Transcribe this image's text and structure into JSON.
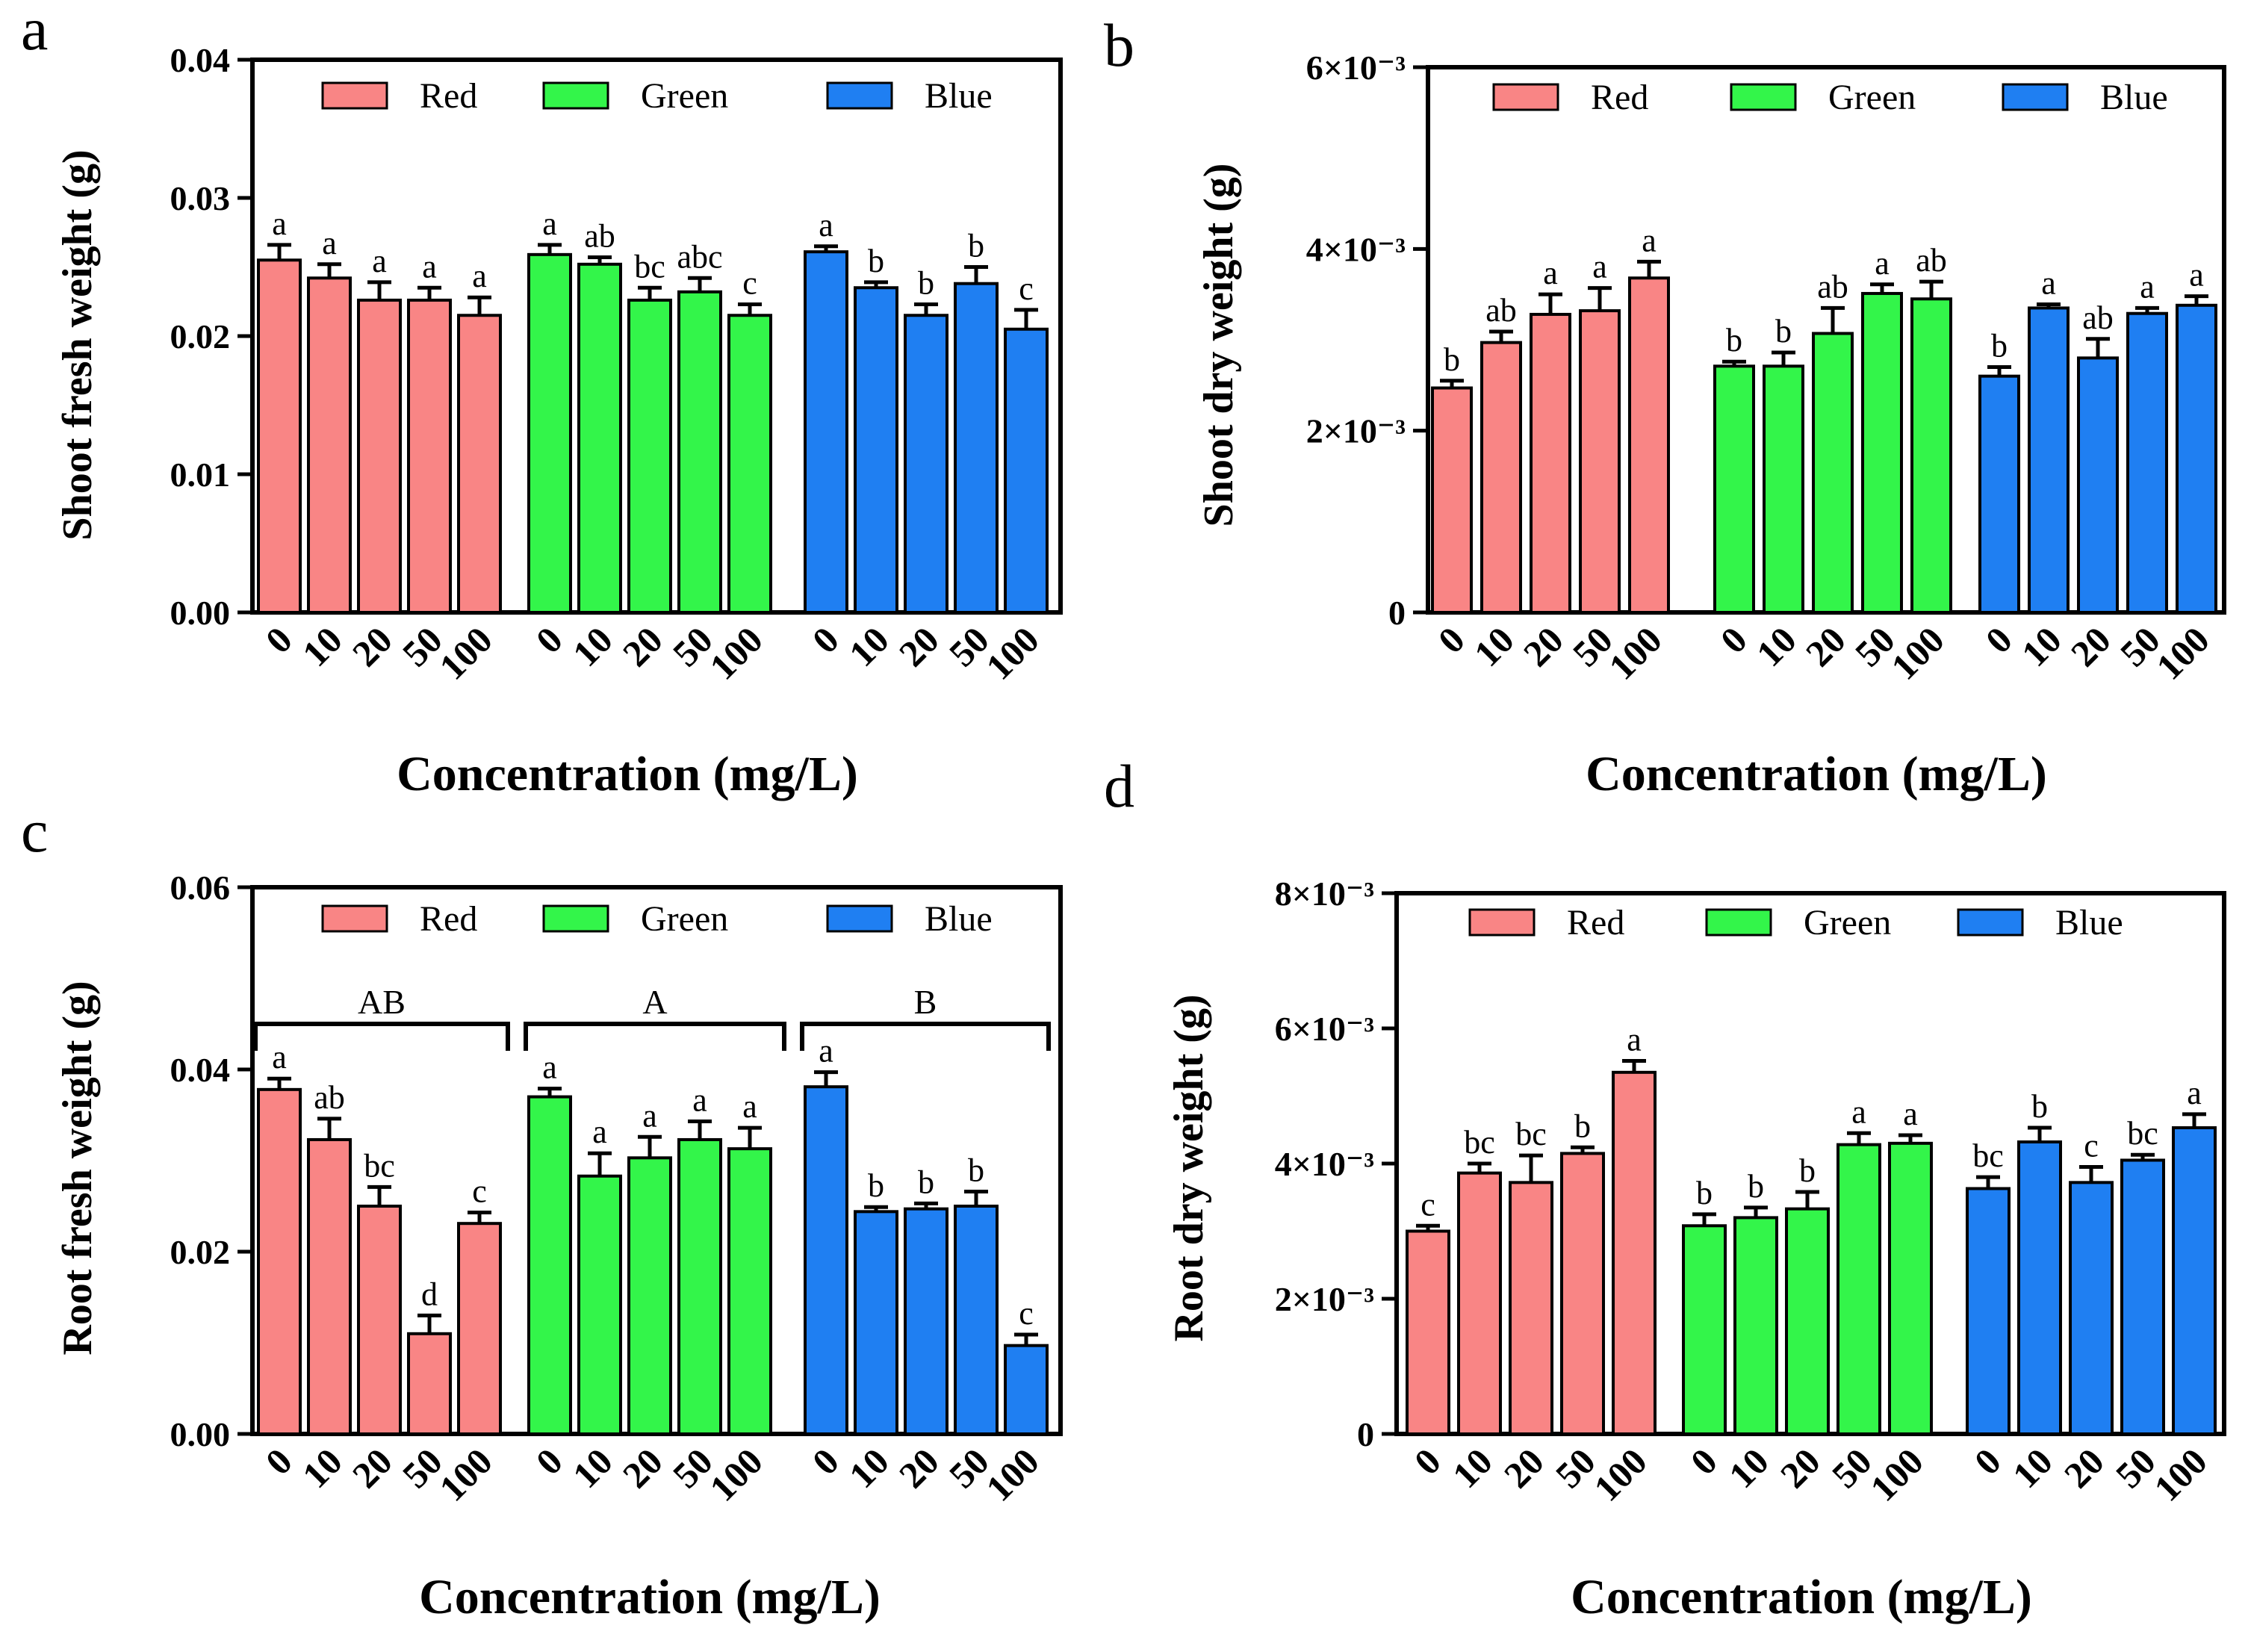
{
  "colors": {
    "Red": "#f98585",
    "Green": "#33f54a",
    "Blue": "#1f7ff2",
    "axis": "#000000"
  },
  "chart_data": [
    {
      "panel": "a",
      "type": "bar",
      "title": "",
      "ylabel": "Shoot fresh weight (g)",
      "xlabel": "Concentration (mg/L)",
      "categories": [
        "0",
        "10",
        "20",
        "50",
        "100"
      ],
      "ylim": [
        0,
        0.04
      ],
      "yticks": [
        0,
        0.01,
        0.02,
        0.03,
        0.04
      ],
      "ytick_labels": [
        "0.00",
        "0.01",
        "0.02",
        "0.03",
        "0.04"
      ],
      "legend": [
        "Red",
        "Green",
        "Blue"
      ],
      "series": [
        {
          "name": "Red",
          "values": [
            0.0255,
            0.0242,
            0.0226,
            0.0226,
            0.0215
          ],
          "errors": [
            0.0011,
            0.001,
            0.0013,
            0.0009,
            0.0013
          ],
          "letters": [
            "a",
            "a",
            "a",
            "a",
            "a"
          ]
        },
        {
          "name": "Green",
          "values": [
            0.0259,
            0.0252,
            0.0226,
            0.0232,
            0.0215
          ],
          "errors": [
            0.0007,
            0.0005,
            0.0009,
            0.001,
            0.0008
          ],
          "letters": [
            "a",
            "ab",
            "bc",
            "abc",
            "c"
          ]
        },
        {
          "name": "Blue",
          "values": [
            0.0261,
            0.0235,
            0.0215,
            0.0238,
            0.0205
          ],
          "errors": [
            0.0004,
            0.0004,
            0.0008,
            0.0012,
            0.0014
          ],
          "letters": [
            "a",
            "b",
            "b",
            "b",
            "c"
          ]
        }
      ],
      "group_brackets": null
    },
    {
      "panel": "b",
      "type": "bar",
      "title": "",
      "ylabel": "Shoot dry weight (g)",
      "xlabel": "Concentration (mg/L)",
      "categories": [
        "0",
        "10",
        "20",
        "50",
        "100"
      ],
      "ylim": [
        0,
        0.006
      ],
      "yticks": [
        0,
        0.002,
        0.004,
        0.006
      ],
      "ytick_labels": [
        "0",
        "2×10⁻³",
        "4×10⁻³",
        "6×10⁻³"
      ],
      "legend": [
        "Red",
        "Green",
        "Blue"
      ],
      "series": [
        {
          "name": "Red",
          "values": [
            0.00247,
            0.00297,
            0.00328,
            0.00332,
            0.00368
          ],
          "errors": [
            8e-05,
            0.00012,
            0.00022,
            0.00025,
            0.00018
          ],
          "letters": [
            "b",
            "ab",
            "a",
            "a",
            "a"
          ]
        },
        {
          "name": "Green",
          "values": [
            0.00271,
            0.00271,
            0.00307,
            0.00351,
            0.00345
          ],
          "errors": [
            5e-05,
            0.00015,
            0.00028,
            0.0001,
            0.00019
          ],
          "letters": [
            "b",
            "b",
            "ab",
            "a",
            "ab"
          ]
        },
        {
          "name": "Blue",
          "values": [
            0.0026,
            0.00335,
            0.0028,
            0.00329,
            0.00338
          ],
          "errors": [
            0.0001,
            4e-05,
            0.00021,
            6e-05,
            0.0001
          ],
          "letters": [
            "b",
            "a",
            "ab",
            "a",
            "a"
          ]
        }
      ],
      "group_brackets": null
    },
    {
      "panel": "c",
      "type": "bar",
      "title": "",
      "ylabel": "Root fresh weight  (g)",
      "xlabel": "Concentration  (mg/L)",
      "categories": [
        "0",
        "10",
        "20",
        "50",
        "100"
      ],
      "ylim": [
        0,
        0.06
      ],
      "yticks": [
        0,
        0.02,
        0.04,
        0.06
      ],
      "ytick_labels": [
        "0.00",
        "0.02",
        "0.04",
        "0.06"
      ],
      "legend": [
        "Red",
        "Green",
        "Blue"
      ],
      "series": [
        {
          "name": "Red",
          "values": [
            0.0378,
            0.0323,
            0.025,
            0.011,
            0.0231
          ],
          "errors": [
            0.0012,
            0.0023,
            0.0021,
            0.002,
            0.0012
          ],
          "letters": [
            "a",
            "ab",
            "bc",
            "d",
            "c"
          ]
        },
        {
          "name": "Green",
          "values": [
            0.037,
            0.0283,
            0.0303,
            0.0323,
            0.0313
          ],
          "errors": [
            0.0009,
            0.0025,
            0.0023,
            0.002,
            0.0023
          ],
          "letters": [
            "a",
            "a",
            "a",
            "a",
            "a"
          ]
        },
        {
          "name": "Blue",
          "values": [
            0.0381,
            0.0244,
            0.0247,
            0.025,
            0.0097
          ],
          "errors": [
            0.0016,
            0.0005,
            0.0006,
            0.0016,
            0.0012
          ],
          "letters": [
            "a",
            "b",
            "b",
            "b",
            "c"
          ]
        }
      ],
      "group_brackets": [
        "AB",
        "A",
        "B"
      ]
    },
    {
      "panel": "d",
      "type": "bar",
      "title": "",
      "ylabel": "Root dry weight (g)",
      "xlabel": "Concentration (mg/L)",
      "categories": [
        "0",
        "10",
        "20",
        "50",
        "100"
      ],
      "ylim": [
        0,
        0.008
      ],
      "yticks": [
        0,
        0.002,
        0.004,
        0.006,
        0.008
      ],
      "ytick_labels": [
        "0",
        "2×10⁻³",
        "4×10⁻³",
        "6×10⁻³",
        "8×10⁻³"
      ],
      "legend": [
        "Red",
        "Green",
        "Blue"
      ],
      "series": [
        {
          "name": "Red",
          "values": [
            0.003,
            0.00386,
            0.00372,
            0.00415,
            0.00535
          ],
          "errors": [
            8e-05,
            0.00014,
            0.0004,
            9e-05,
            0.00017
          ],
          "letters": [
            "c",
            "bc",
            "bc",
            "b",
            "a"
          ]
        },
        {
          "name": "Green",
          "values": [
            0.00308,
            0.0032,
            0.00333,
            0.00428,
            0.0043
          ],
          "errors": [
            0.00017,
            0.00015,
            0.00025,
            0.00017,
            0.00012
          ],
          "letters": [
            "b",
            "b",
            "b",
            "a",
            "a"
          ]
        },
        {
          "name": "Blue",
          "values": [
            0.00363,
            0.00432,
            0.00372,
            0.00405,
            0.00453
          ],
          "errors": [
            0.00017,
            0.00021,
            0.00023,
            8e-05,
            0.0002
          ],
          "letters": [
            "bc",
            "b",
            "c",
            "bc",
            "a"
          ]
        }
      ],
      "group_brackets": null
    }
  ]
}
